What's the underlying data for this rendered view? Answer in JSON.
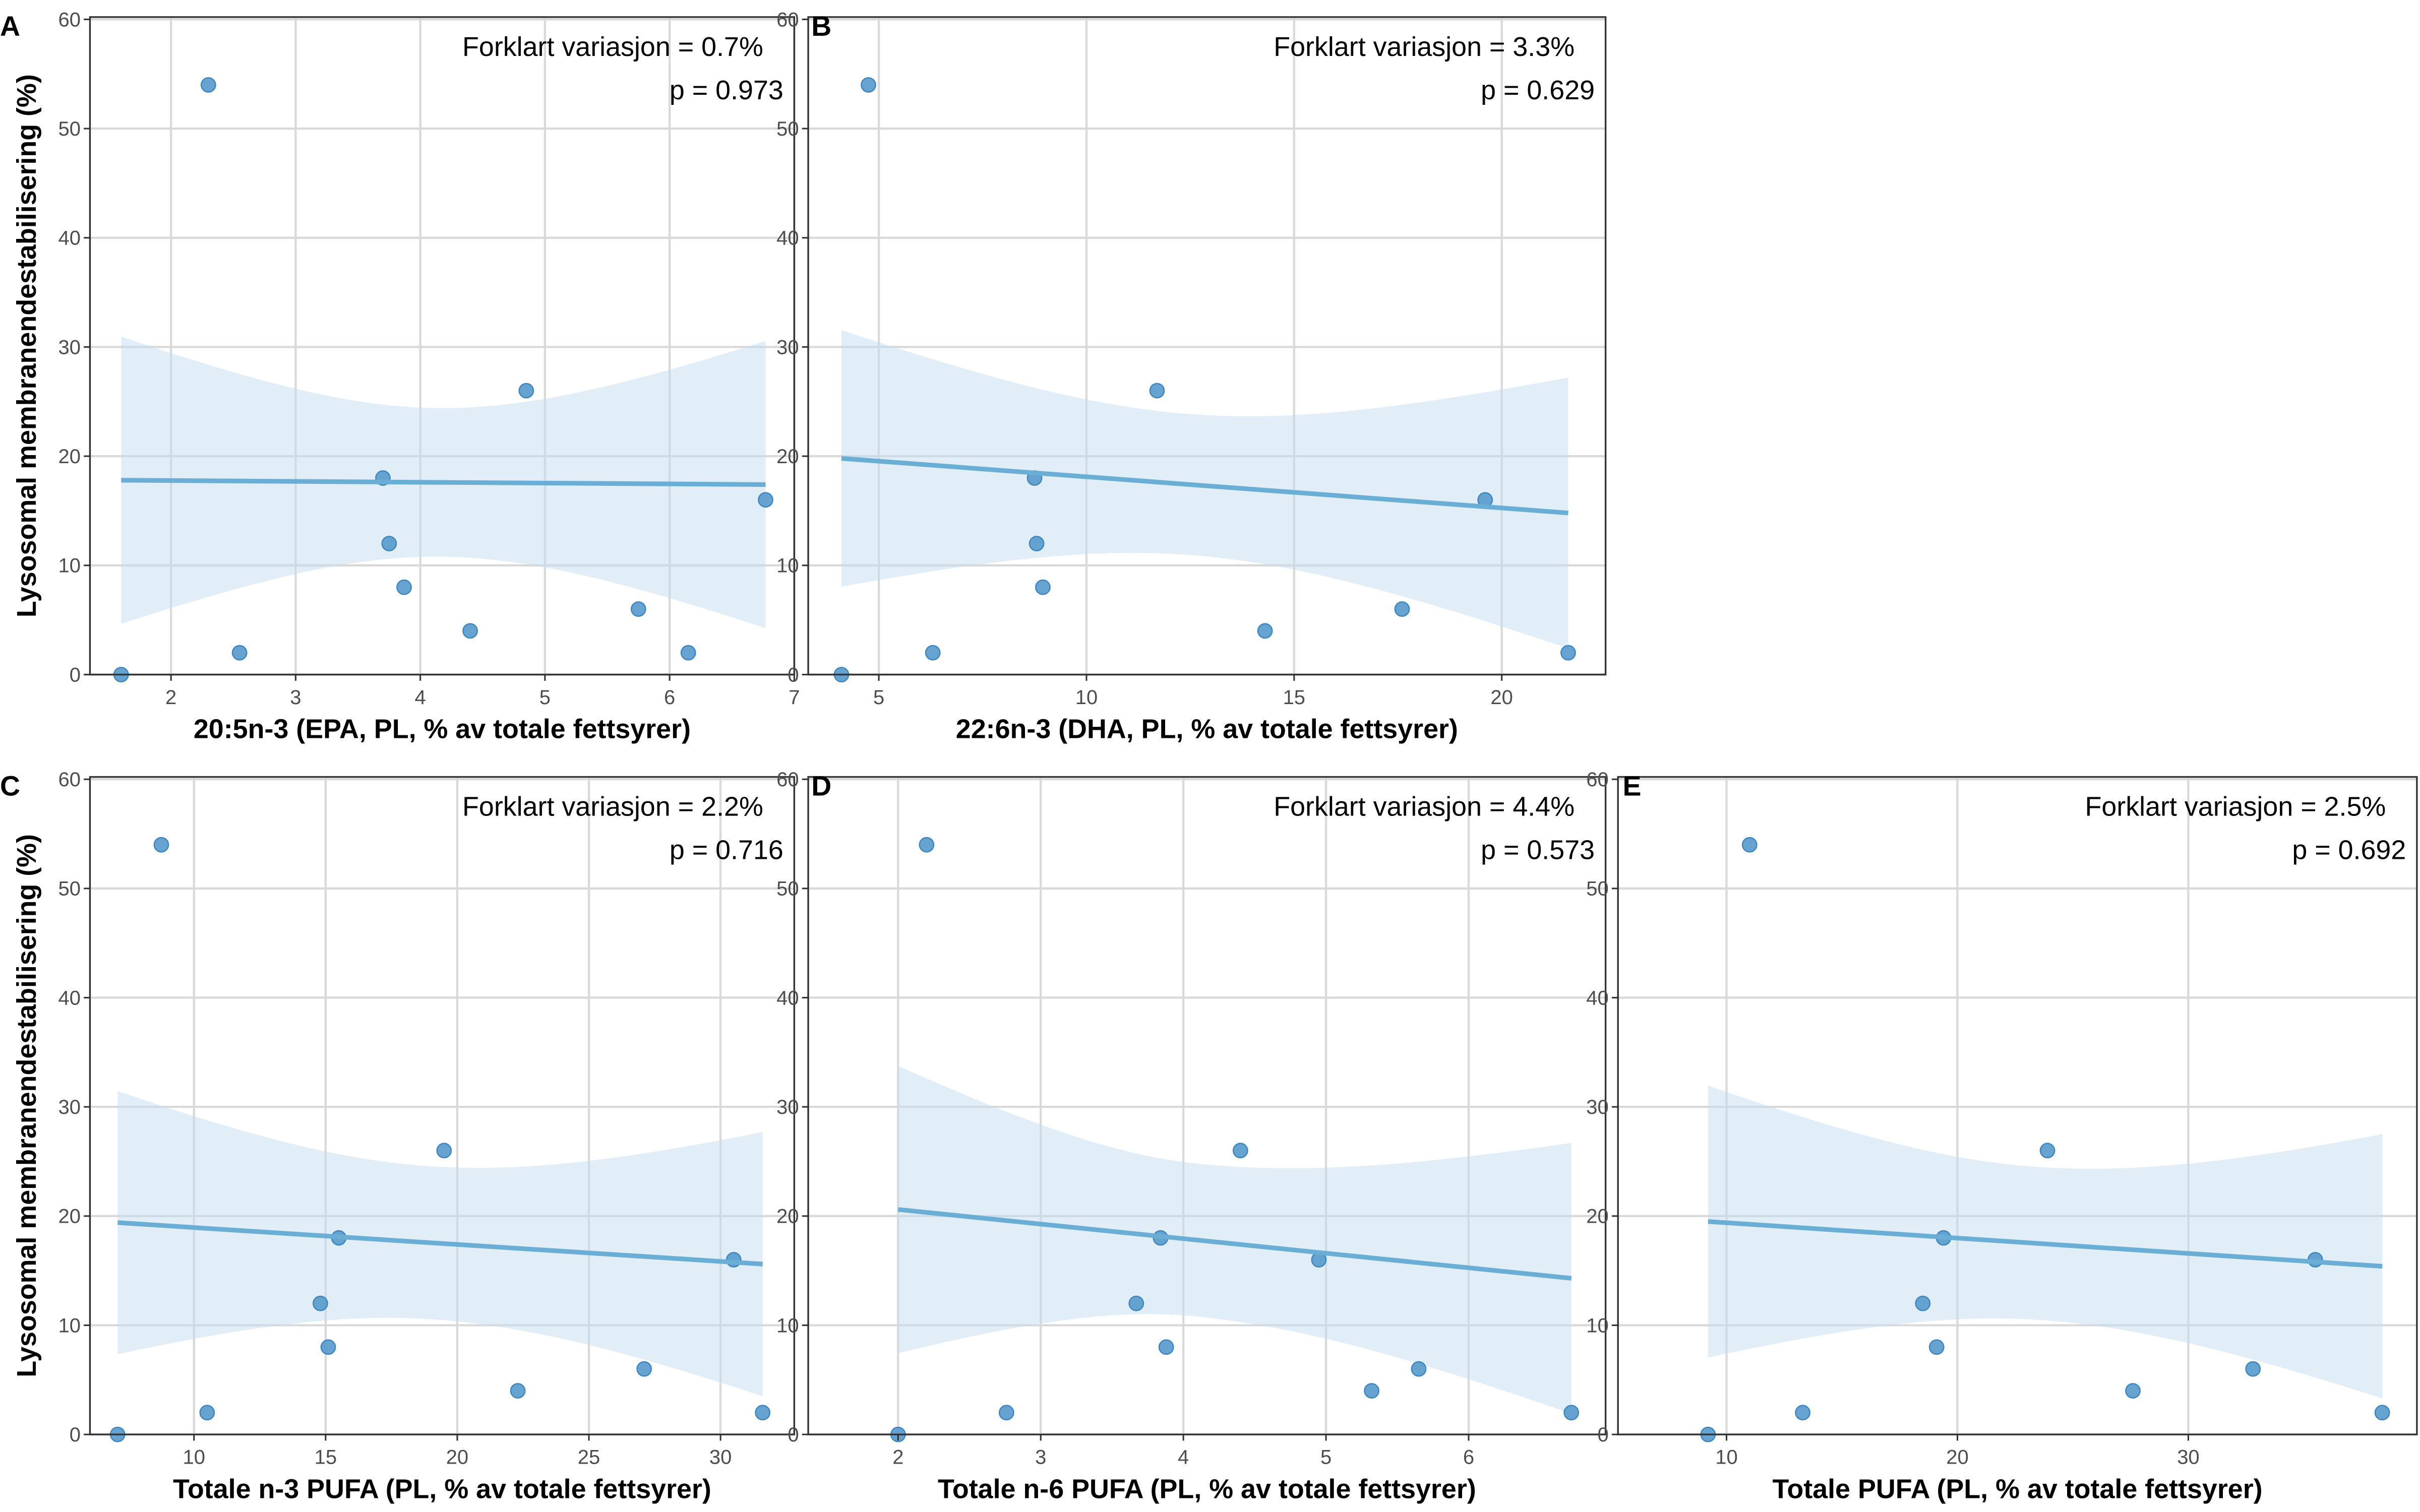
{
  "chart_data": [
    {
      "type": "scatter",
      "panel_label": "A",
      "xlabel": "20:5n-3 (EPA, PL, % av totale fettsyrer)",
      "ylabel": "Lysosomal membranendestabilisering (%)",
      "xlim": [
        1.35,
        7.0
      ],
      "ylim": [
        0,
        60
      ],
      "xticks": [
        2,
        3,
        4,
        5,
        6,
        7
      ],
      "yticks": [
        0,
        10,
        20,
        30,
        40,
        50,
        60
      ],
      "annotation": [
        "Forklart variasjon = 0.7%",
        "p = 0.973"
      ],
      "points": [
        [
          1.6,
          0
        ],
        [
          2.3,
          54
        ],
        [
          2.55,
          2
        ],
        [
          3.7,
          18
        ],
        [
          3.75,
          12
        ],
        [
          3.87,
          8
        ],
        [
          4.4,
          4
        ],
        [
          4.85,
          26
        ],
        [
          5.75,
          6
        ],
        [
          6.15,
          2
        ],
        [
          6.77,
          16
        ]
      ],
      "fit": {
        "x": [
          1.6,
          6.77
        ],
        "y": [
          17.8,
          17.4
        ]
      },
      "ci": {
        "x": [
          1.6,
          4.15,
          6.77
        ],
        "lower": [
          8.2,
          11.9,
          8.0
        ],
        "upper": [
          34.5,
          25.5,
          34.3
        ]
      },
      "grid": true
    },
    {
      "type": "scatter",
      "panel_label": "B",
      "xlabel": "22:6n-3 (DHA, PL, % av totale fettsyrer)",
      "ylabel": "",
      "xlim": [
        3.3,
        22.5
      ],
      "ylim": [
        0,
        60
      ],
      "xticks": [
        5,
        10,
        15,
        20
      ],
      "yticks": [
        0,
        10,
        20,
        30,
        40,
        50,
        60
      ],
      "annotation": [
        "Forklart variasjon = 3.3%",
        "p = 0.629"
      ],
      "points": [
        [
          4.1,
          0
        ],
        [
          4.75,
          54
        ],
        [
          6.3,
          2
        ],
        [
          8.75,
          18
        ],
        [
          8.8,
          12
        ],
        [
          8.95,
          8
        ],
        [
          11.7,
          26
        ],
        [
          14.3,
          4
        ],
        [
          17.6,
          6
        ],
        [
          19.6,
          16
        ],
        [
          21.6,
          2
        ]
      ],
      "fit": {
        "x": [
          4.1,
          21.6
        ],
        "y": [
          19.8,
          14.8
        ]
      },
      "ci": {
        "x": [
          4.1,
          12.5,
          21.6
        ],
        "lower": [
          10.5,
          12.1,
          6.3
        ],
        "upper": [
          34.0,
          25.0,
          31.1
        ]
      },
      "grid": true
    },
    {
      "type": "scatter",
      "panel_label": "C",
      "xlabel": "Totale n-3 PUFA (PL, % av totale fettsyrer)",
      "ylabel": "Lysosomal membranendestabilisering (%)",
      "xlim": [
        6.05,
        32.8
      ],
      "ylim": [
        0,
        60
      ],
      "xticks": [
        10,
        15,
        20,
        25,
        30
      ],
      "yticks": [
        0,
        10,
        20,
        30,
        40,
        50,
        60
      ],
      "annotation": [
        "Forklart variasjon = 2.2%",
        "p = 0.716"
      ],
      "points": [
        [
          7.1,
          0
        ],
        [
          8.76,
          54
        ],
        [
          10.5,
          2
        ],
        [
          14.8,
          12
        ],
        [
          15.1,
          8
        ],
        [
          15.5,
          18
        ],
        [
          19.5,
          26
        ],
        [
          22.3,
          4
        ],
        [
          27.1,
          6
        ],
        [
          30.5,
          16
        ],
        [
          31.6,
          2
        ]
      ],
      "fit": {
        "x": [
          7.1,
          31.6
        ],
        "y": [
          19.4,
          15.6
        ]
      },
      "ci": {
        "x": [
          7.1,
          19.0,
          31.6
        ],
        "lower": [
          10.2,
          12.0,
          7.0
        ],
        "upper": [
          34.3,
          26.0,
          31.2
        ]
      },
      "grid": true
    },
    {
      "type": "scatter",
      "panel_label": "D",
      "xlabel": "Totale n-6 PUFA (PL, % av totale fettsyrer)",
      "ylabel": "",
      "xlim": [
        1.37,
        6.96
      ],
      "ylim": [
        0,
        60
      ],
      "xticks": [
        2,
        3,
        4,
        5,
        6
      ],
      "yticks": [
        0,
        10,
        20,
        30,
        40,
        50,
        60
      ],
      "annotation": [
        "Forklart variasjon = 4.4%",
        "p = 0.573"
      ],
      "points": [
        [
          2.0,
          0
        ],
        [
          2.2,
          54
        ],
        [
          2.76,
          2
        ],
        [
          3.67,
          12
        ],
        [
          3.84,
          18
        ],
        [
          3.88,
          8
        ],
        [
          4.4,
          26
        ],
        [
          4.95,
          16
        ],
        [
          5.32,
          4
        ],
        [
          5.65,
          6
        ],
        [
          6.72,
          2
        ]
      ],
      "fit": {
        "x": [
          2.0,
          6.72
        ],
        "y": [
          20.6,
          14.3
        ]
      },
      "ci": {
        "x": [
          2.0,
          4.1,
          6.72
        ],
        "lower": [
          10.5,
          11.5,
          6.0
        ],
        "upper": [
          36.8,
          25.5,
          30.8
        ]
      },
      "grid": true
    },
    {
      "type": "scatter",
      "panel_label": "E",
      "xlabel": "Totale PUFA (PL, % av totale fettsyrer)",
      "ylabel": "",
      "xlim": [
        5.3,
        39.9
      ],
      "ylim": [
        0,
        60
      ],
      "xticks": [
        10,
        20,
        30
      ],
      "yticks": [
        0,
        10,
        20,
        30,
        40,
        50,
        60
      ],
      "annotation": [
        "Forklart variasjon = 2.5%",
        "p = 0.692"
      ],
      "points": [
        [
          9.2,
          0
        ],
        [
          11.0,
          54
        ],
        [
          13.3,
          2
        ],
        [
          18.5,
          12
        ],
        [
          19.1,
          8
        ],
        [
          19.4,
          18
        ],
        [
          23.9,
          26
        ],
        [
          27.6,
          4
        ],
        [
          32.8,
          6
        ],
        [
          35.5,
          16
        ],
        [
          38.4,
          2
        ]
      ],
      "fit": {
        "x": [
          9.2,
          38.4
        ],
        "y": [
          19.5,
          15.4
        ]
      },
      "ci": {
        "x": [
          9.2,
          23.5,
          38.4
        ],
        "lower": [
          9.8,
          12.0,
          7.0
        ],
        "upper": [
          34.7,
          26.0,
          31.2
        ]
      },
      "grid": true
    }
  ],
  "colors": {
    "points": "#5799cb",
    "point_stroke": "#3f86c0",
    "fit_line": "#6aaed6",
    "ci_band": "#c6ddf0",
    "grid": "#d9d9d9",
    "axis": "#333333"
  }
}
